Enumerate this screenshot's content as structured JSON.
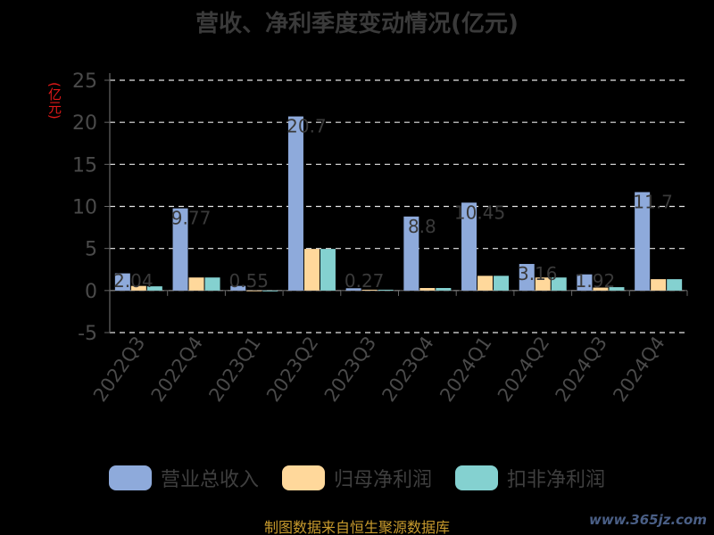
{
  "chart_data": {
    "type": "bar",
    "title": "营收、净利季度变动情况(亿元)",
    "ylabel": "(亿元)",
    "xlabel": "",
    "categories": [
      "2022Q3",
      "2022Q4",
      "2023Q1",
      "2023Q2",
      "2023Q3",
      "2023Q4",
      "2024Q1",
      "2024Q2",
      "2024Q3",
      "2024Q4"
    ],
    "series": [
      {
        "name": "营业总收入",
        "color": "#8eaadb",
        "values": [
          2.04,
          9.77,
          0.55,
          20.7,
          0.27,
          8.8,
          10.45,
          3.16,
          1.92,
          11.7
        ]
      },
      {
        "name": "归母净利润",
        "color": "#ffd89b",
        "values": [
          0.55,
          1.55,
          -0.05,
          4.95,
          0.1,
          0.3,
          1.75,
          1.55,
          0.35,
          1.35
        ]
      },
      {
        "name": "扣非净利润",
        "color": "#84d1d0",
        "values": [
          0.5,
          1.55,
          -0.1,
          4.95,
          0.1,
          0.3,
          1.75,
          1.55,
          0.4,
          1.35
        ]
      }
    ],
    "ylim": [
      -5,
      25
    ],
    "yticks": [
      "-5",
      "0",
      "5",
      "10",
      "15",
      "20",
      "25"
    ],
    "grid": true,
    "legend": "bottom",
    "data_labels": [
      "2.04",
      "9.77",
      "0.55",
      "20.7",
      "0.27",
      "8.8",
      "10.45",
      "3.16",
      "1.92",
      "11.7"
    ]
  },
  "footer": {
    "source": "制图数据来自恒生聚源数据库",
    "watermark": "www.365jz.com"
  }
}
